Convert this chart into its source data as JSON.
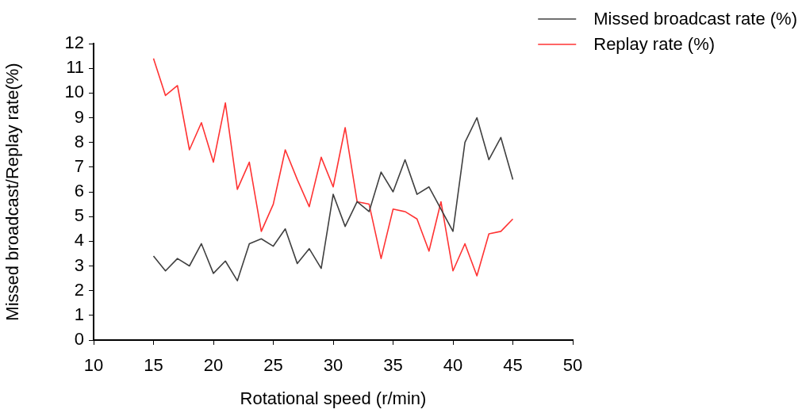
{
  "chart_data": {
    "type": "line",
    "xlabel": "Rotational speed (r/min)",
    "ylabel": "Missed broadcast/Replay rate(%)",
    "x": [
      15,
      16,
      17,
      18,
      19,
      20,
      21,
      22,
      23,
      24,
      25,
      26,
      27,
      28,
      29,
      30,
      31,
      32,
      33,
      34,
      35,
      36,
      37,
      38,
      39,
      40,
      41,
      42,
      43,
      44,
      45
    ],
    "series": [
      {
        "name": "Missed broadcast rate (%)",
        "color": "#404040",
        "values": [
          3.4,
          2.8,
          3.3,
          3.0,
          3.9,
          2.7,
          3.2,
          2.4,
          3.9,
          4.1,
          3.8,
          4.5,
          3.1,
          3.7,
          2.9,
          5.9,
          4.6,
          5.6,
          5.2,
          6.8,
          6.0,
          7.3,
          5.9,
          6.2,
          5.3,
          4.4,
          8.0,
          9.0,
          7.3,
          8.2,
          6.5
        ]
      },
      {
        "name": "Replay rate (%)",
        "color": "#ff3333",
        "values": [
          11.4,
          9.9,
          10.3,
          7.7,
          8.8,
          7.2,
          9.6,
          6.1,
          7.2,
          4.4,
          5.5,
          7.7,
          6.5,
          5.4,
          7.4,
          6.2,
          8.6,
          5.6,
          5.5,
          3.3,
          5.3,
          5.2,
          4.9,
          3.6,
          5.6,
          2.8,
          3.9,
          2.6,
          4.3,
          4.4,
          4.9
        ]
      }
    ],
    "xlim": [
      10,
      50
    ],
    "xticks": [
      10,
      15,
      20,
      25,
      30,
      35,
      40,
      45,
      50
    ],
    "ylim": [
      0,
      12
    ],
    "yticks": [
      0,
      1,
      2,
      3,
      4,
      5,
      6,
      7,
      8,
      9,
      10,
      11,
      12
    ],
    "grid": false,
    "legend": "top right",
    "marker": "none",
    "line_style": "solid"
  }
}
